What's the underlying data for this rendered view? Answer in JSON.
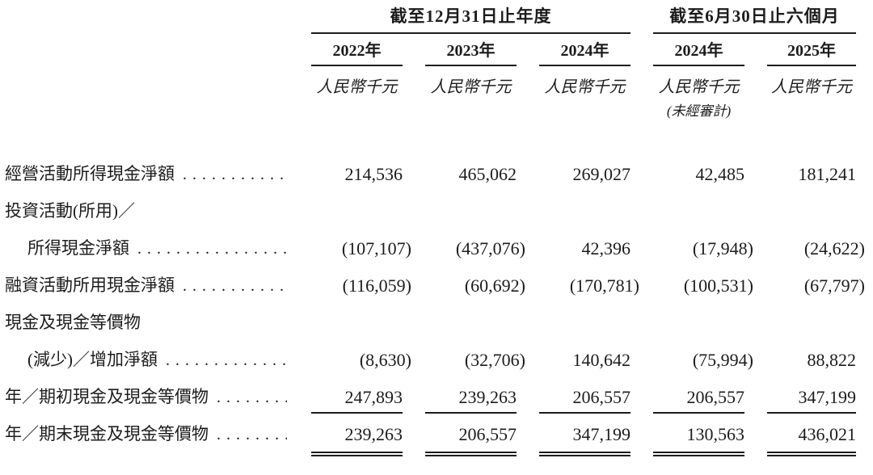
{
  "table": {
    "currency_unit": "人民幣千元",
    "col_groups": [
      {
        "title": "截至12月31日止年度",
        "span": 3
      },
      {
        "title": "截至6月30日止六個月",
        "span": 2
      }
    ],
    "columns": [
      {
        "year": "2022年",
        "unit": "人民幣千元",
        "note": ""
      },
      {
        "year": "2023年",
        "unit": "人民幣千元",
        "note": ""
      },
      {
        "year": "2024年",
        "unit": "人民幣千元",
        "note": ""
      },
      {
        "year": "2024年",
        "unit": "人民幣千元",
        "note": "(未經審計)"
      },
      {
        "year": "2025年",
        "unit": "人民幣千元",
        "note": ""
      }
    ],
    "rows": [
      {
        "label": "經營活動所得現金淨額",
        "dots": true,
        "indent": false,
        "underline": "none",
        "values": [
          "214,536",
          "465,062",
          "269,027",
          "42,485",
          "181,241"
        ]
      },
      {
        "label": "投資活動(所用)／",
        "dots": false,
        "indent": false,
        "underline": "none",
        "values": []
      },
      {
        "label": "所得現金淨額",
        "dots": true,
        "indent": true,
        "underline": "none",
        "values": [
          "(107,107)",
          "(437,076)",
          "42,396",
          "(17,948)",
          "(24,622)"
        ]
      },
      {
        "label": "融資活動所用現金淨額",
        "dots": true,
        "indent": false,
        "underline": "none",
        "values": [
          "(116,059)",
          "(60,692)",
          "(170,781)",
          "(100,531)",
          "(67,797)"
        ]
      },
      {
        "label": "現金及現金等價物",
        "dots": false,
        "indent": false,
        "underline": "none",
        "values": []
      },
      {
        "label": "(減少)／增加淨額",
        "dots": true,
        "indent": true,
        "underline": "none",
        "values": [
          "(8,630)",
          "(32,706)",
          "140,642",
          "(75,994)",
          "88,822"
        ]
      },
      {
        "label": "年／期初現金及現金等價物",
        "dots": true,
        "indent": false,
        "underline": "single",
        "values": [
          "247,893",
          "239,263",
          "206,557",
          "206,557",
          "347,199"
        ]
      },
      {
        "label": "年／期末現金及現金等價物",
        "dots": true,
        "indent": false,
        "underline": "double",
        "values": [
          "239,263",
          "206,557",
          "347,199",
          "130,563",
          "436,021"
        ]
      }
    ],
    "text_color": "#1c1c1c",
    "background_color": "#ffffff"
  }
}
